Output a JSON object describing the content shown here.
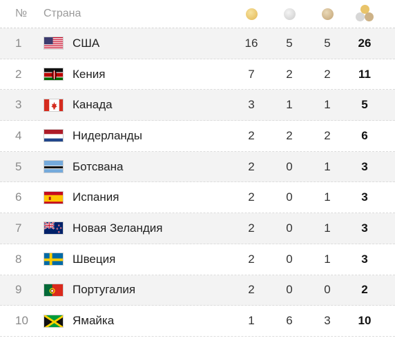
{
  "header": {
    "rank_label": "№",
    "country_label": "Страна",
    "gold_icon": "gold-medal-icon",
    "silver_icon": "silver-medal-icon",
    "bronze_icon": "bronze-medal-icon",
    "total_icon": "total-medals-icon"
  },
  "rows": [
    {
      "rank": "1",
      "country": "США",
      "flag": "usa-flag-icon",
      "gold": "16",
      "silver": "5",
      "bronze": "5",
      "total": "26"
    },
    {
      "rank": "2",
      "country": "Кения",
      "flag": "kenya-flag-icon",
      "gold": "7",
      "silver": "2",
      "bronze": "2",
      "total": "11"
    },
    {
      "rank": "3",
      "country": "Канада",
      "flag": "canada-flag-icon",
      "gold": "3",
      "silver": "1",
      "bronze": "1",
      "total": "5"
    },
    {
      "rank": "4",
      "country": "Нидерланды",
      "flag": "netherlands-flag-icon",
      "gold": "2",
      "silver": "2",
      "bronze": "2",
      "total": "6"
    },
    {
      "rank": "5",
      "country": "Ботсвана",
      "flag": "botswana-flag-icon",
      "gold": "2",
      "silver": "0",
      "bronze": "1",
      "total": "3"
    },
    {
      "rank": "6",
      "country": "Испания",
      "flag": "spain-flag-icon",
      "gold": "2",
      "silver": "0",
      "bronze": "1",
      "total": "3"
    },
    {
      "rank": "7",
      "country": "Новая Зеландия",
      "flag": "new-zealand-flag-icon",
      "gold": "2",
      "silver": "0",
      "bronze": "1",
      "total": "3"
    },
    {
      "rank": "8",
      "country": "Швеция",
      "flag": "sweden-flag-icon",
      "gold": "2",
      "silver": "0",
      "bronze": "1",
      "total": "3"
    },
    {
      "rank": "9",
      "country": "Португалия",
      "flag": "portugal-flag-icon",
      "gold": "2",
      "silver": "0",
      "bronze": "0",
      "total": "2"
    },
    {
      "rank": "10",
      "country": "Ямайка",
      "flag": "jamaica-flag-icon",
      "gold": "1",
      "silver": "6",
      "bronze": "3",
      "total": "10"
    }
  ],
  "colors": {
    "shaded_row": "#f3f3f3",
    "gold": "#e9c46a",
    "silver": "#d7d7d7",
    "bronze": "#cdb287"
  }
}
